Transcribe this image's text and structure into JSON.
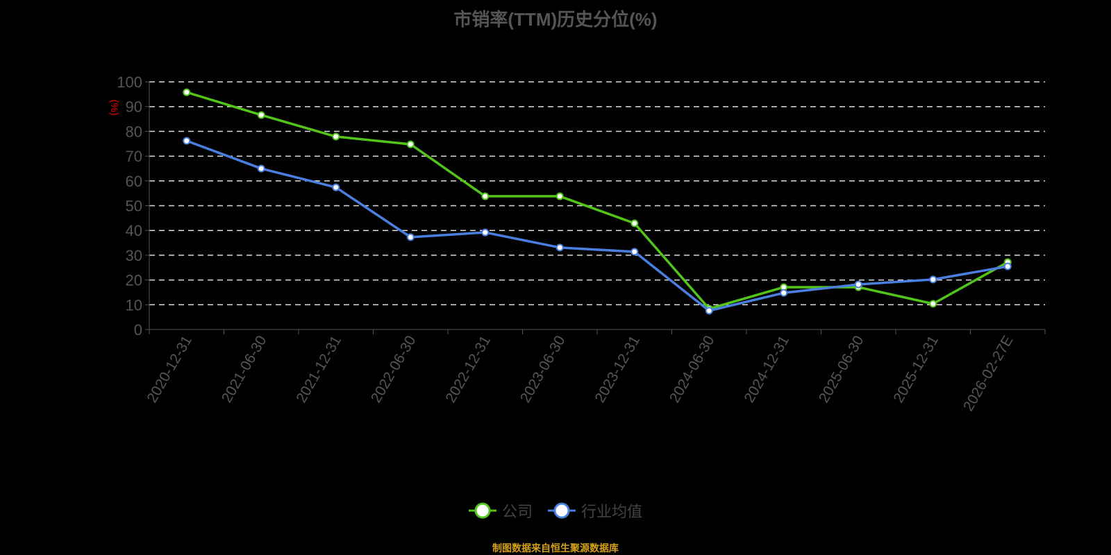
{
  "chart_data": {
    "type": "line",
    "title": "市销率(TTM)历史分位(%)",
    "ylabel": "(%)",
    "xlabel": "",
    "ylim": [
      0,
      100
    ],
    "yticks": [
      0,
      10,
      20,
      30,
      40,
      50,
      60,
      70,
      80,
      90,
      100
    ],
    "grid": true,
    "legend_placement": "bottom",
    "categories": [
      "2020-12-31",
      "2021-06-30",
      "2021-12-31",
      "2022-06-30",
      "2022-12-31",
      "2023-06-30",
      "2023-12-31",
      "2024-06-30",
      "2024-12-31",
      "2025-06-30",
      "2025-12-31",
      "2026-02-27E"
    ],
    "series": [
      {
        "name": "公司",
        "color": "#52c41a",
        "values": [
          95.8,
          86.6,
          77.9,
          74.8,
          53.8,
          53.8,
          42.9,
          8.4,
          17.1,
          17.1,
          10.4,
          27.2
        ]
      },
      {
        "name": "行业均值",
        "color": "#4a7fe0",
        "values": [
          76.2,
          65.0,
          57.4,
          37.3,
          39.2,
          33.1,
          31.4,
          7.6,
          14.8,
          18.2,
          20.2,
          25.5
        ]
      }
    ]
  },
  "source": "制图数据来自恒生聚源数据库"
}
